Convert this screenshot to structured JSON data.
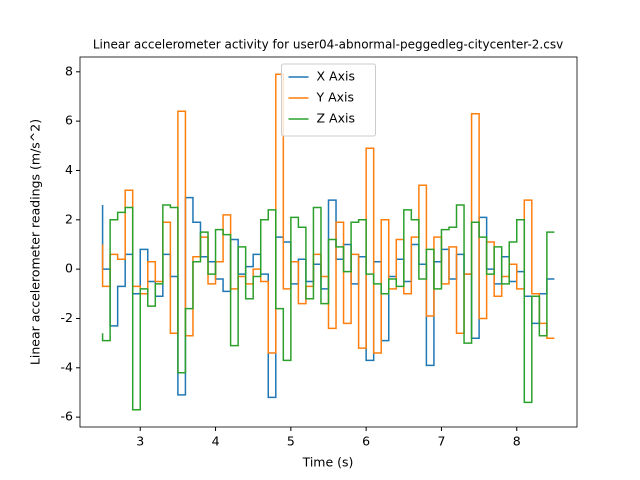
{
  "chart_data": {
    "type": "line",
    "drawstyle": "steps-pre",
    "title": "Linear accelerometer activity for user04-abnormal-peggedleg-citycenter-2.csv",
    "xlabel": "Time (s)",
    "ylabel": "Linear accelerometer readings (m/s^2)",
    "x": [
      2.5,
      2.6,
      2.7,
      2.8,
      2.9,
      3.0,
      3.1,
      3.2,
      3.3,
      3.4,
      3.5,
      3.6,
      3.7,
      3.8,
      3.9,
      4.0,
      4.1,
      4.2,
      4.3,
      4.4,
      4.5,
      4.6,
      4.7,
      4.8,
      4.9,
      5.0,
      5.1,
      5.2,
      5.3,
      5.4,
      5.5,
      5.6,
      5.7,
      5.8,
      5.9,
      6.0,
      6.1,
      6.2,
      6.3,
      6.4,
      6.5,
      6.6,
      6.7,
      6.8,
      6.9,
      7.0,
      7.1,
      7.2,
      7.3,
      7.4,
      7.5,
      7.6,
      7.7,
      7.8,
      7.9,
      8.0,
      8.1,
      8.2,
      8.3,
      8.4,
      8.5
    ],
    "series": [
      {
        "name": "X Axis",
        "color": "#1f77b4",
        "values": [
          2.6,
          0.0,
          -2.3,
          -0.7,
          0.6,
          -1.0,
          0.8,
          -0.5,
          -1.1,
          0.6,
          -0.3,
          -5.1,
          2.9,
          1.9,
          0.5,
          0.3,
          -0.4,
          -0.9,
          1.2,
          -0.2,
          0.1,
          0.6,
          -0.2,
          -5.2,
          1.3,
          1.1,
          -0.6,
          0.4,
          -0.5,
          0.2,
          -0.8,
          2.8,
          0.4,
          1.0,
          -0.6,
          0.5,
          -3.7,
          0.3,
          -2.9,
          -0.3,
          0.4,
          -0.5,
          1.0,
          0.2,
          -3.9,
          0.3,
          0.8,
          -0.4,
          0.6,
          -0.2,
          -2.8,
          2.1,
          0.0,
          -0.6,
          0.5,
          -0.5,
          -0.1,
          -1.1,
          -2.2,
          -1.0,
          -0.4
        ]
      },
      {
        "name": "Y Axis",
        "color": "#ff7f0e",
        "values": [
          1.0,
          -0.7,
          0.6,
          0.4,
          3.2,
          -0.7,
          -1.0,
          0.3,
          -0.5,
          1.9,
          -2.6,
          6.4,
          -2.7,
          0.5,
          1.3,
          -0.6,
          0.3,
          2.2,
          -0.8,
          -0.3,
          -0.6,
          0.0,
          -0.5,
          -3.4,
          7.9,
          -0.8,
          0.3,
          -1.4,
          -0.7,
          0.6,
          -0.3,
          -2.4,
          1.9,
          -2.2,
          0.6,
          -3.2,
          4.9,
          -3.4,
          2.0,
          -0.8,
          1.2,
          -1.0,
          1.3,
          3.4,
          -1.9,
          1.3,
          -0.6,
          0.9,
          -2.6,
          -0.2,
          6.3,
          -2.0,
          1.1,
          -1.1,
          -0.3,
          0.2,
          -0.8,
          2.8,
          -1.0,
          -2.2,
          -2.8
        ]
      },
      {
        "name": "Z Axis",
        "color": "#2ca02c",
        "values": [
          -2.6,
          -2.9,
          2.0,
          2.3,
          2.5,
          -5.7,
          -0.8,
          -1.5,
          -0.6,
          2.6,
          2.5,
          -4.2,
          -1.6,
          0.3,
          1.5,
          -0.2,
          1.6,
          1.4,
          -3.1,
          0.9,
          -1.2,
          -0.3,
          2.0,
          2.4,
          -1.6,
          -3.7,
          2.1,
          1.7,
          -1.2,
          2.5,
          -1.4,
          1.2,
          0.9,
          -0.1,
          1.9,
          2.0,
          -0.2,
          -0.6,
          -1.0,
          -0.4,
          -0.7,
          2.4,
          2.0,
          -0.4,
          0.8,
          -0.8,
          1.6,
          1.7,
          2.6,
          -3.0,
          1.9,
          1.3,
          -0.2,
          0.9,
          -0.6,
          1.1,
          2.0,
          -5.4,
          -1.1,
          -2.7,
          1.5
        ]
      }
    ],
    "xlim": [
      2.2,
      8.8
    ],
    "ylim": [
      -6.4,
      8.6
    ],
    "xticks": [
      3,
      4,
      5,
      6,
      7,
      8
    ],
    "yticks": [
      -6,
      -4,
      -2,
      0,
      2,
      4,
      6,
      8
    ],
    "legend": "upper center"
  }
}
